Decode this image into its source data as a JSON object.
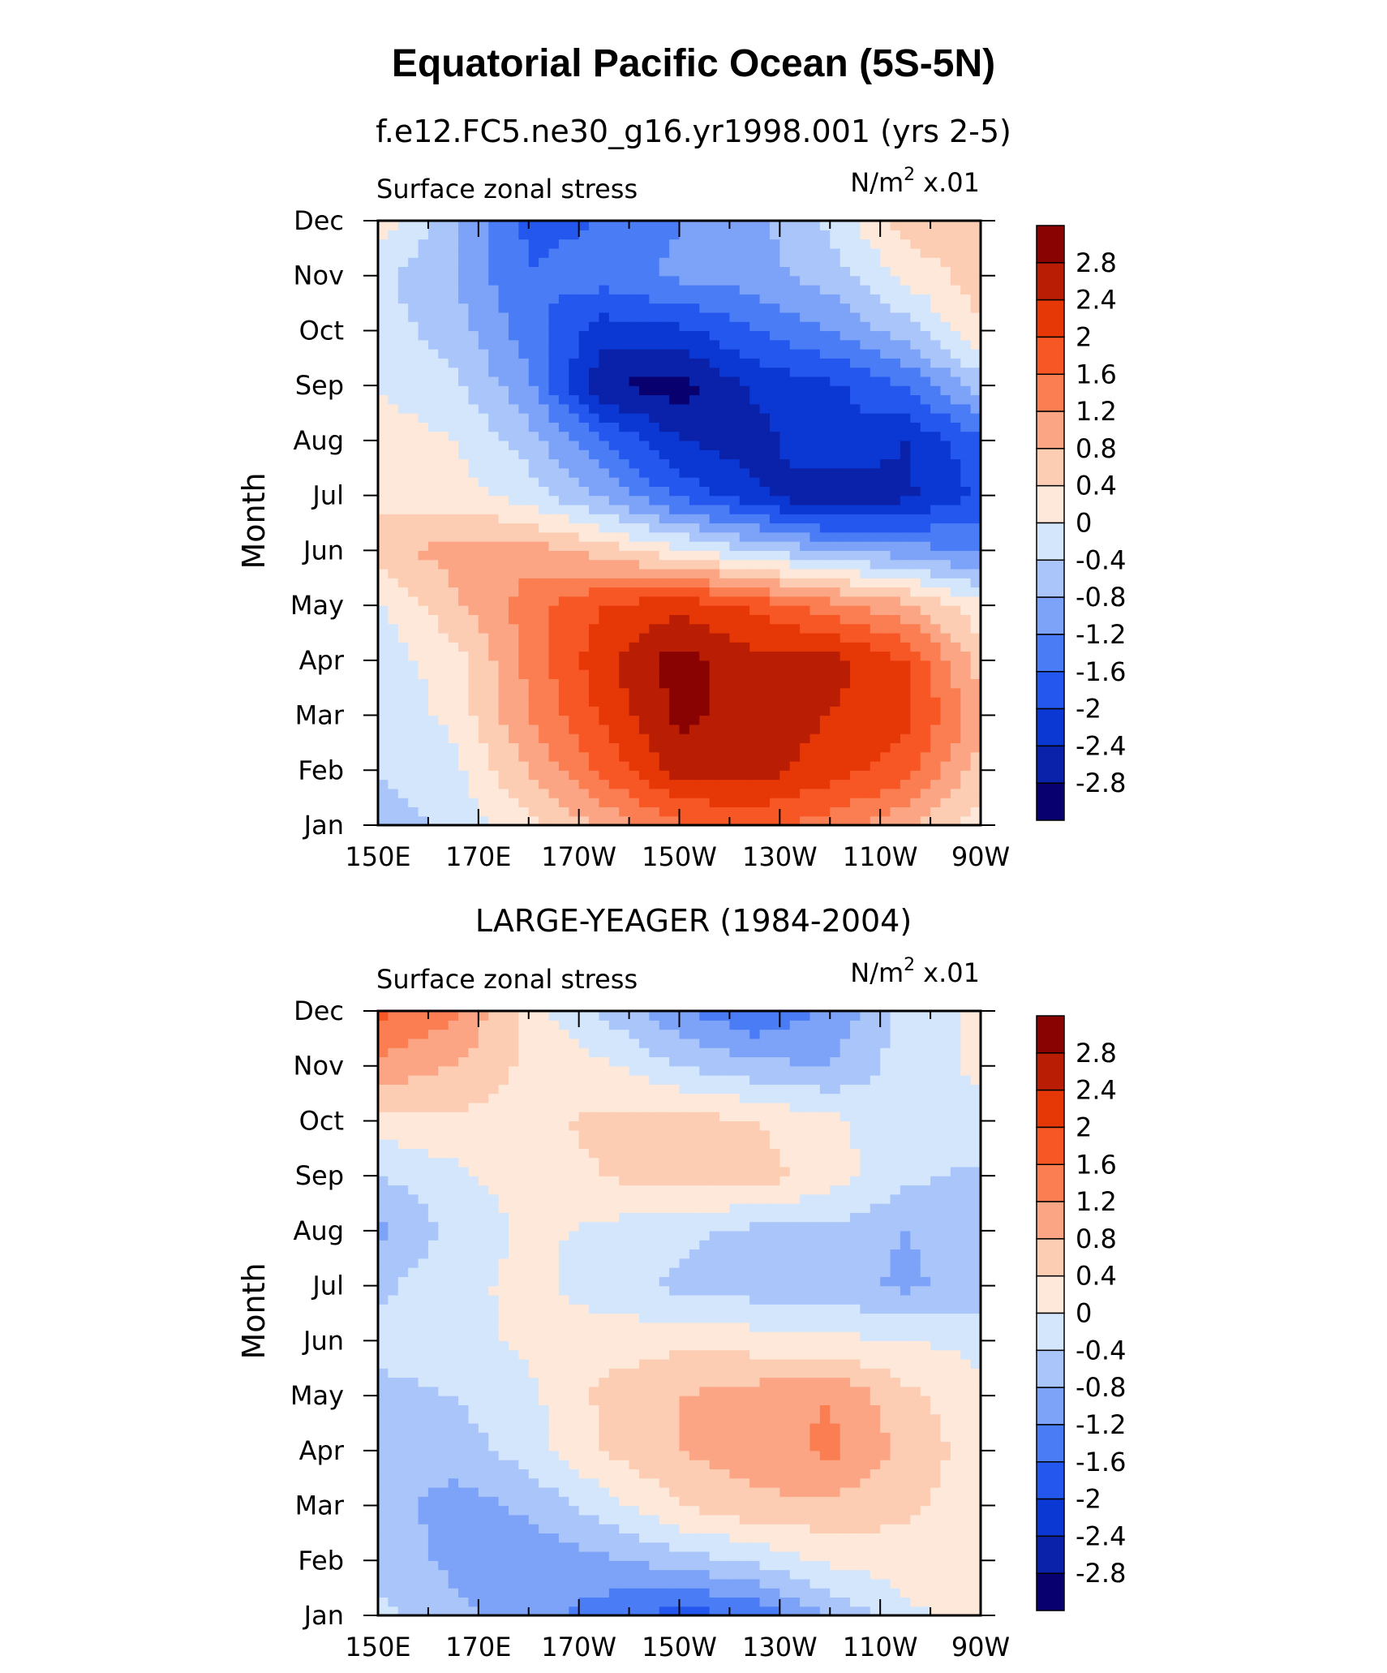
{
  "figure": {
    "title": "Equatorial Pacific Ocean (5S-5N)"
  },
  "chart_data": [
    {
      "type": "heatmap",
      "title": "f.e12.FC5.ne30_g16.yr1998.001 (yrs 2-5)",
      "left_string": "Surface zonal stress",
      "right_string_units": "N/m",
      "right_string_sup": "2",
      "right_string_scale": "x.01",
      "ylabel": "Month",
      "x": [
        "150E",
        "170E",
        "170W",
        "150W",
        "130W",
        "110W",
        "90W"
      ],
      "x_lon": [
        150,
        170,
        190,
        210,
        230,
        250,
        270
      ],
      "y": [
        "Jan",
        "Feb",
        "Mar",
        "Apr",
        "May",
        "Jun",
        "Jul",
        "Aug",
        "Sep",
        "Oct",
        "Nov",
        "Dec"
      ],
      "xlim": [
        150,
        270
      ],
      "z": [
        [
          -0.6,
          -0.3,
          0.3,
          0.9,
          1.5,
          1.7,
          1.4,
          0.9,
          0.2
        ],
        [
          -0.4,
          -0.1,
          0.8,
          1.7,
          2.6,
          2.6,
          2.2,
          1.8,
          0.6
        ],
        [
          -0.3,
          0.1,
          1.2,
          2.1,
          2.9,
          2.6,
          2.4,
          2.1,
          1.0
        ],
        [
          -0.2,
          0.2,
          1.3,
          2.3,
          3.0,
          2.5,
          2.6,
          2.0,
          0.6
        ],
        [
          -0.1,
          0.7,
          1.4,
          2.0,
          2.3,
          1.9,
          1.4,
          0.9,
          0.1
        ],
        [
          0.6,
          1.0,
          1.0,
          0.6,
          0.1,
          -0.4,
          -0.8,
          -1.0,
          -1.3
        ],
        [
          0.3,
          0.2,
          -0.2,
          -0.9,
          -1.7,
          -2.3,
          -2.8,
          -2.5,
          -1.9
        ],
        [
          0.2,
          0.0,
          -0.6,
          -1.6,
          -2.4,
          -2.6,
          -2.0,
          -2.4,
          -1.7
        ],
        [
          0.0,
          -0.3,
          -1.1,
          -2.8,
          -3.0,
          -2.3,
          -2.1,
          -1.6,
          -0.6
        ],
        [
          -0.2,
          -0.6,
          -1.4,
          -2.2,
          -2.1,
          -1.6,
          -1.2,
          -0.6,
          0.4
        ],
        [
          -0.3,
          -0.8,
          -1.6,
          -1.4,
          -1.1,
          -1.0,
          -0.6,
          0.1,
          0.6
        ],
        [
          0.3,
          -0.7,
          -1.7,
          -1.6,
          -1.2,
          -0.9,
          -0.3,
          0.6,
          0.8
        ]
      ],
      "colorbar_levels": [
        "2.8",
        "2.4",
        "2",
        "1.6",
        "1.2",
        "0.8",
        "0.4",
        "0",
        "-0.4",
        "-0.8",
        "-1.2",
        "-1.6",
        "-2",
        "-2.4",
        "-2.8"
      ]
    },
    {
      "type": "heatmap",
      "title": "LARGE-YEAGER (1984-2004)",
      "left_string": "Surface zonal stress",
      "right_string_units": "N/m",
      "right_string_sup": "2",
      "right_string_scale": "x.01",
      "ylabel": "Month",
      "x": [
        "150E",
        "170E",
        "170W",
        "150W",
        "130W",
        "110W",
        "90W"
      ],
      "x_lon": [
        150,
        170,
        190,
        210,
        230,
        250,
        270
      ],
      "y": [
        "Jan",
        "Feb",
        "Mar",
        "Apr",
        "May",
        "Jun",
        "Jul",
        "Aug",
        "Sep",
        "Oct",
        "Nov",
        "Dec"
      ],
      "xlim": [
        150,
        270
      ],
      "z": [
        [
          -0.3,
          -0.7,
          -1.0,
          -1.4,
          -1.8,
          -1.5,
          -0.8,
          -0.1,
          0.2
        ],
        [
          -0.5,
          -0.9,
          -1.1,
          -0.9,
          -0.6,
          -0.3,
          0.1,
          0.2,
          0.1
        ],
        [
          -0.6,
          -1.0,
          -0.7,
          -0.2,
          0.4,
          0.7,
          0.7,
          0.5,
          0.1
        ],
        [
          -0.5,
          -0.6,
          -0.2,
          0.4,
          0.8,
          1.0,
          1.3,
          0.7,
          0.2
        ],
        [
          -0.5,
          -0.4,
          -0.1,
          0.5,
          0.8,
          1.0,
          1.2,
          0.5,
          0.1
        ],
        [
          -0.3,
          -0.2,
          0.1,
          0.2,
          0.3,
          0.2,
          0.1,
          0.0,
          -0.1
        ],
        [
          -0.5,
          -0.1,
          0.1,
          -0.2,
          -0.5,
          -0.6,
          -0.6,
          -0.9,
          -0.6
        ],
        [
          -0.9,
          -0.3,
          0.1,
          -0.1,
          -0.3,
          -0.5,
          -0.5,
          -0.8,
          -0.5
        ],
        [
          -0.4,
          -0.1,
          0.2,
          0.4,
          0.6,
          0.6,
          0.2,
          -0.3,
          -0.5
        ],
        [
          0.2,
          0.3,
          0.3,
          0.5,
          0.6,
          0.4,
          0.1,
          -0.3,
          -0.1
        ],
        [
          1.1,
          0.8,
          0.3,
          0.1,
          -0.4,
          -0.7,
          -0.8,
          -0.2,
          0.1
        ],
        [
          1.7,
          1.3,
          0.2,
          -0.5,
          -1.1,
          -1.6,
          -1.1,
          -0.3,
          0.1
        ]
      ],
      "colorbar_levels": [
        "2.8",
        "2.4",
        "2",
        "1.6",
        "1.2",
        "0.8",
        "0.4",
        "0",
        "-0.4",
        "-0.8",
        "-1.2",
        "-1.6",
        "-2",
        "-2.4",
        "-2.8"
      ]
    }
  ],
  "colorscale": [
    "#08006e",
    "#0a21a9",
    "#0b37d3",
    "#2457ee",
    "#4a7cf6",
    "#7da3f8",
    "#a9c5f9",
    "#d4e6fb",
    "#fde8d9",
    "#fcccb3",
    "#fba585",
    "#fa7e52",
    "#f75725",
    "#e63706",
    "#b91e05",
    "#8a0303"
  ]
}
